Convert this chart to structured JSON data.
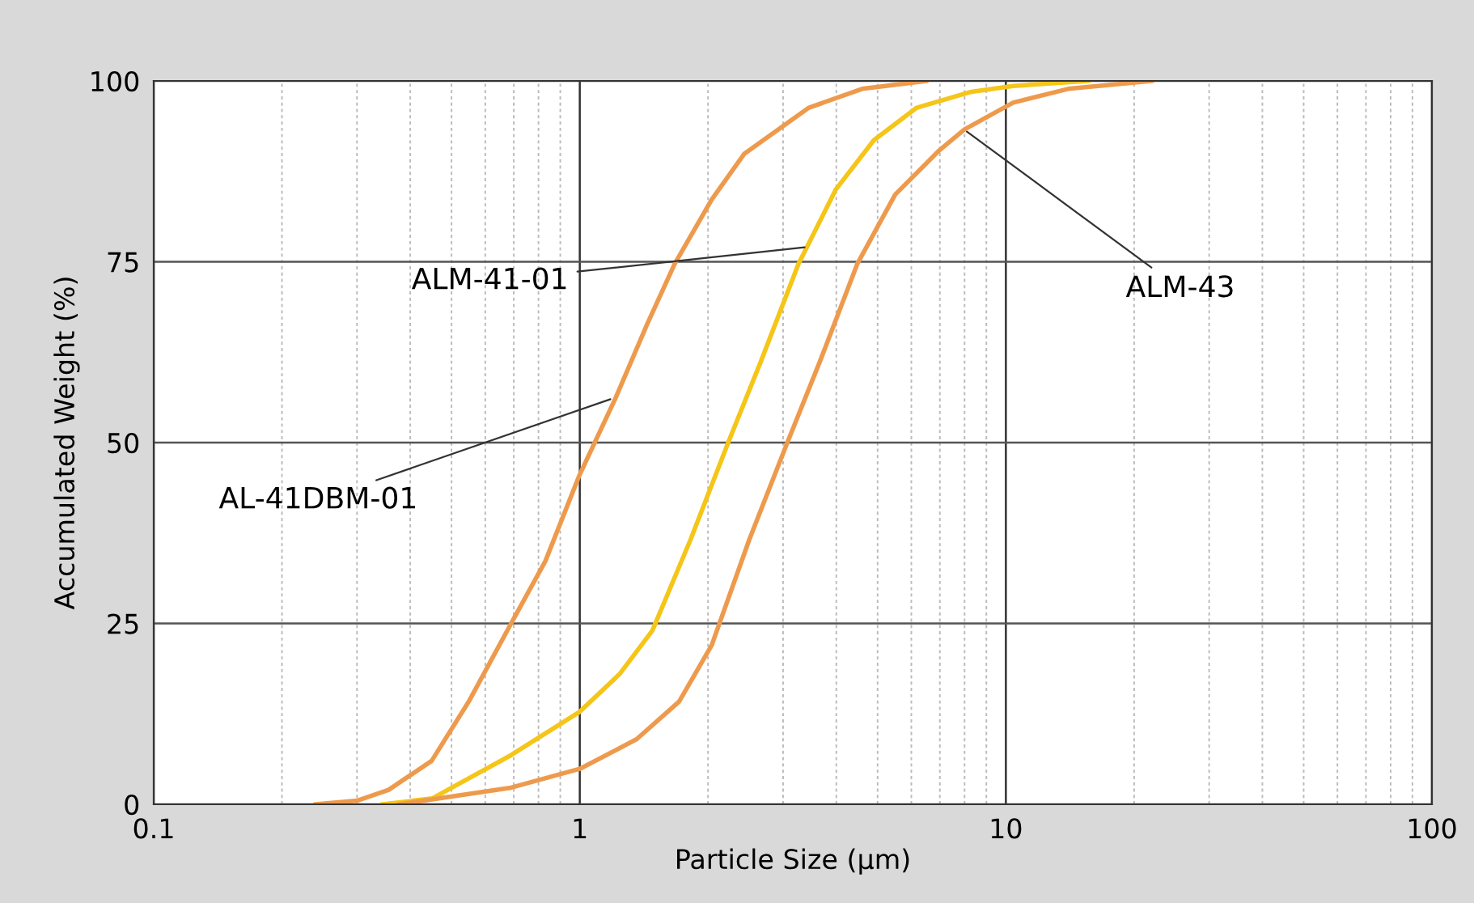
{
  "chart_data": {
    "type": "line",
    "xlabel": "Particle Size (µm)",
    "ylabel": "Accumulated Weight (%)",
    "log": "x",
    "xlim": [
      0.1,
      100
    ],
    "xticks": [
      0.1,
      1,
      10,
      100
    ],
    "ylim": [
      0,
      100
    ],
    "yticks": [
      0,
      25,
      50,
      75,
      100
    ],
    "grid": true,
    "marker": "none",
    "line_style": "solid",
    "series": [
      {
        "color": "#ee9a4d",
        "x": [
          0.24,
          0.3,
          0.356,
          0.449,
          0.55,
          0.69,
          0.83,
          1.0,
          1.21,
          1.44,
          1.67,
          2.04,
          2.43,
          3.45,
          4.6,
          6.5
        ],
        "values": [
          0,
          0.5,
          2,
          6,
          14.3,
          25,
          33.6,
          45.6,
          56,
          66.4,
          74.7,
          83.6,
          89.9,
          96.3,
          98.9,
          100
        ]
      },
      {
        "color": "#f5c518",
        "x": [
          0.345,
          0.45,
          0.69,
          1.0,
          1.24,
          1.48,
          1.82,
          2.23,
          2.66,
          3.26,
          3.99,
          4.9,
          6.18,
          8.3,
          10.4,
          15.6
        ],
        "values": [
          0,
          0.8,
          6.8,
          12.8,
          18,
          24,
          36.6,
          50,
          61.2,
          74.7,
          85,
          91.8,
          96.3,
          98.5,
          99.3,
          100
        ]
      },
      {
        "color": "#ee9a4d",
        "x": [
          0.377,
          0.69,
          1.0,
          1.36,
          1.71,
          2.04,
          2.5,
          3.07,
          3.66,
          4.48,
          5.5,
          6.95,
          8.0,
          10.4,
          14,
          22
        ],
        "values": [
          0,
          2.3,
          4.9,
          9,
          14.2,
          22,
          36.6,
          50,
          61.2,
          74.7,
          84.3,
          90.3,
          93.3,
          97,
          98.9,
          100
        ]
      }
    ],
    "annotations": [
      {
        "text": "ALM-41-01",
        "x": 3.37,
        "y": 77
      },
      {
        "text": "AL-41DBM-01",
        "x": 1.18,
        "y": 56
      },
      {
        "text": "ALM-43",
        "x": 8.1,
        "y": 93
      }
    ]
  }
}
